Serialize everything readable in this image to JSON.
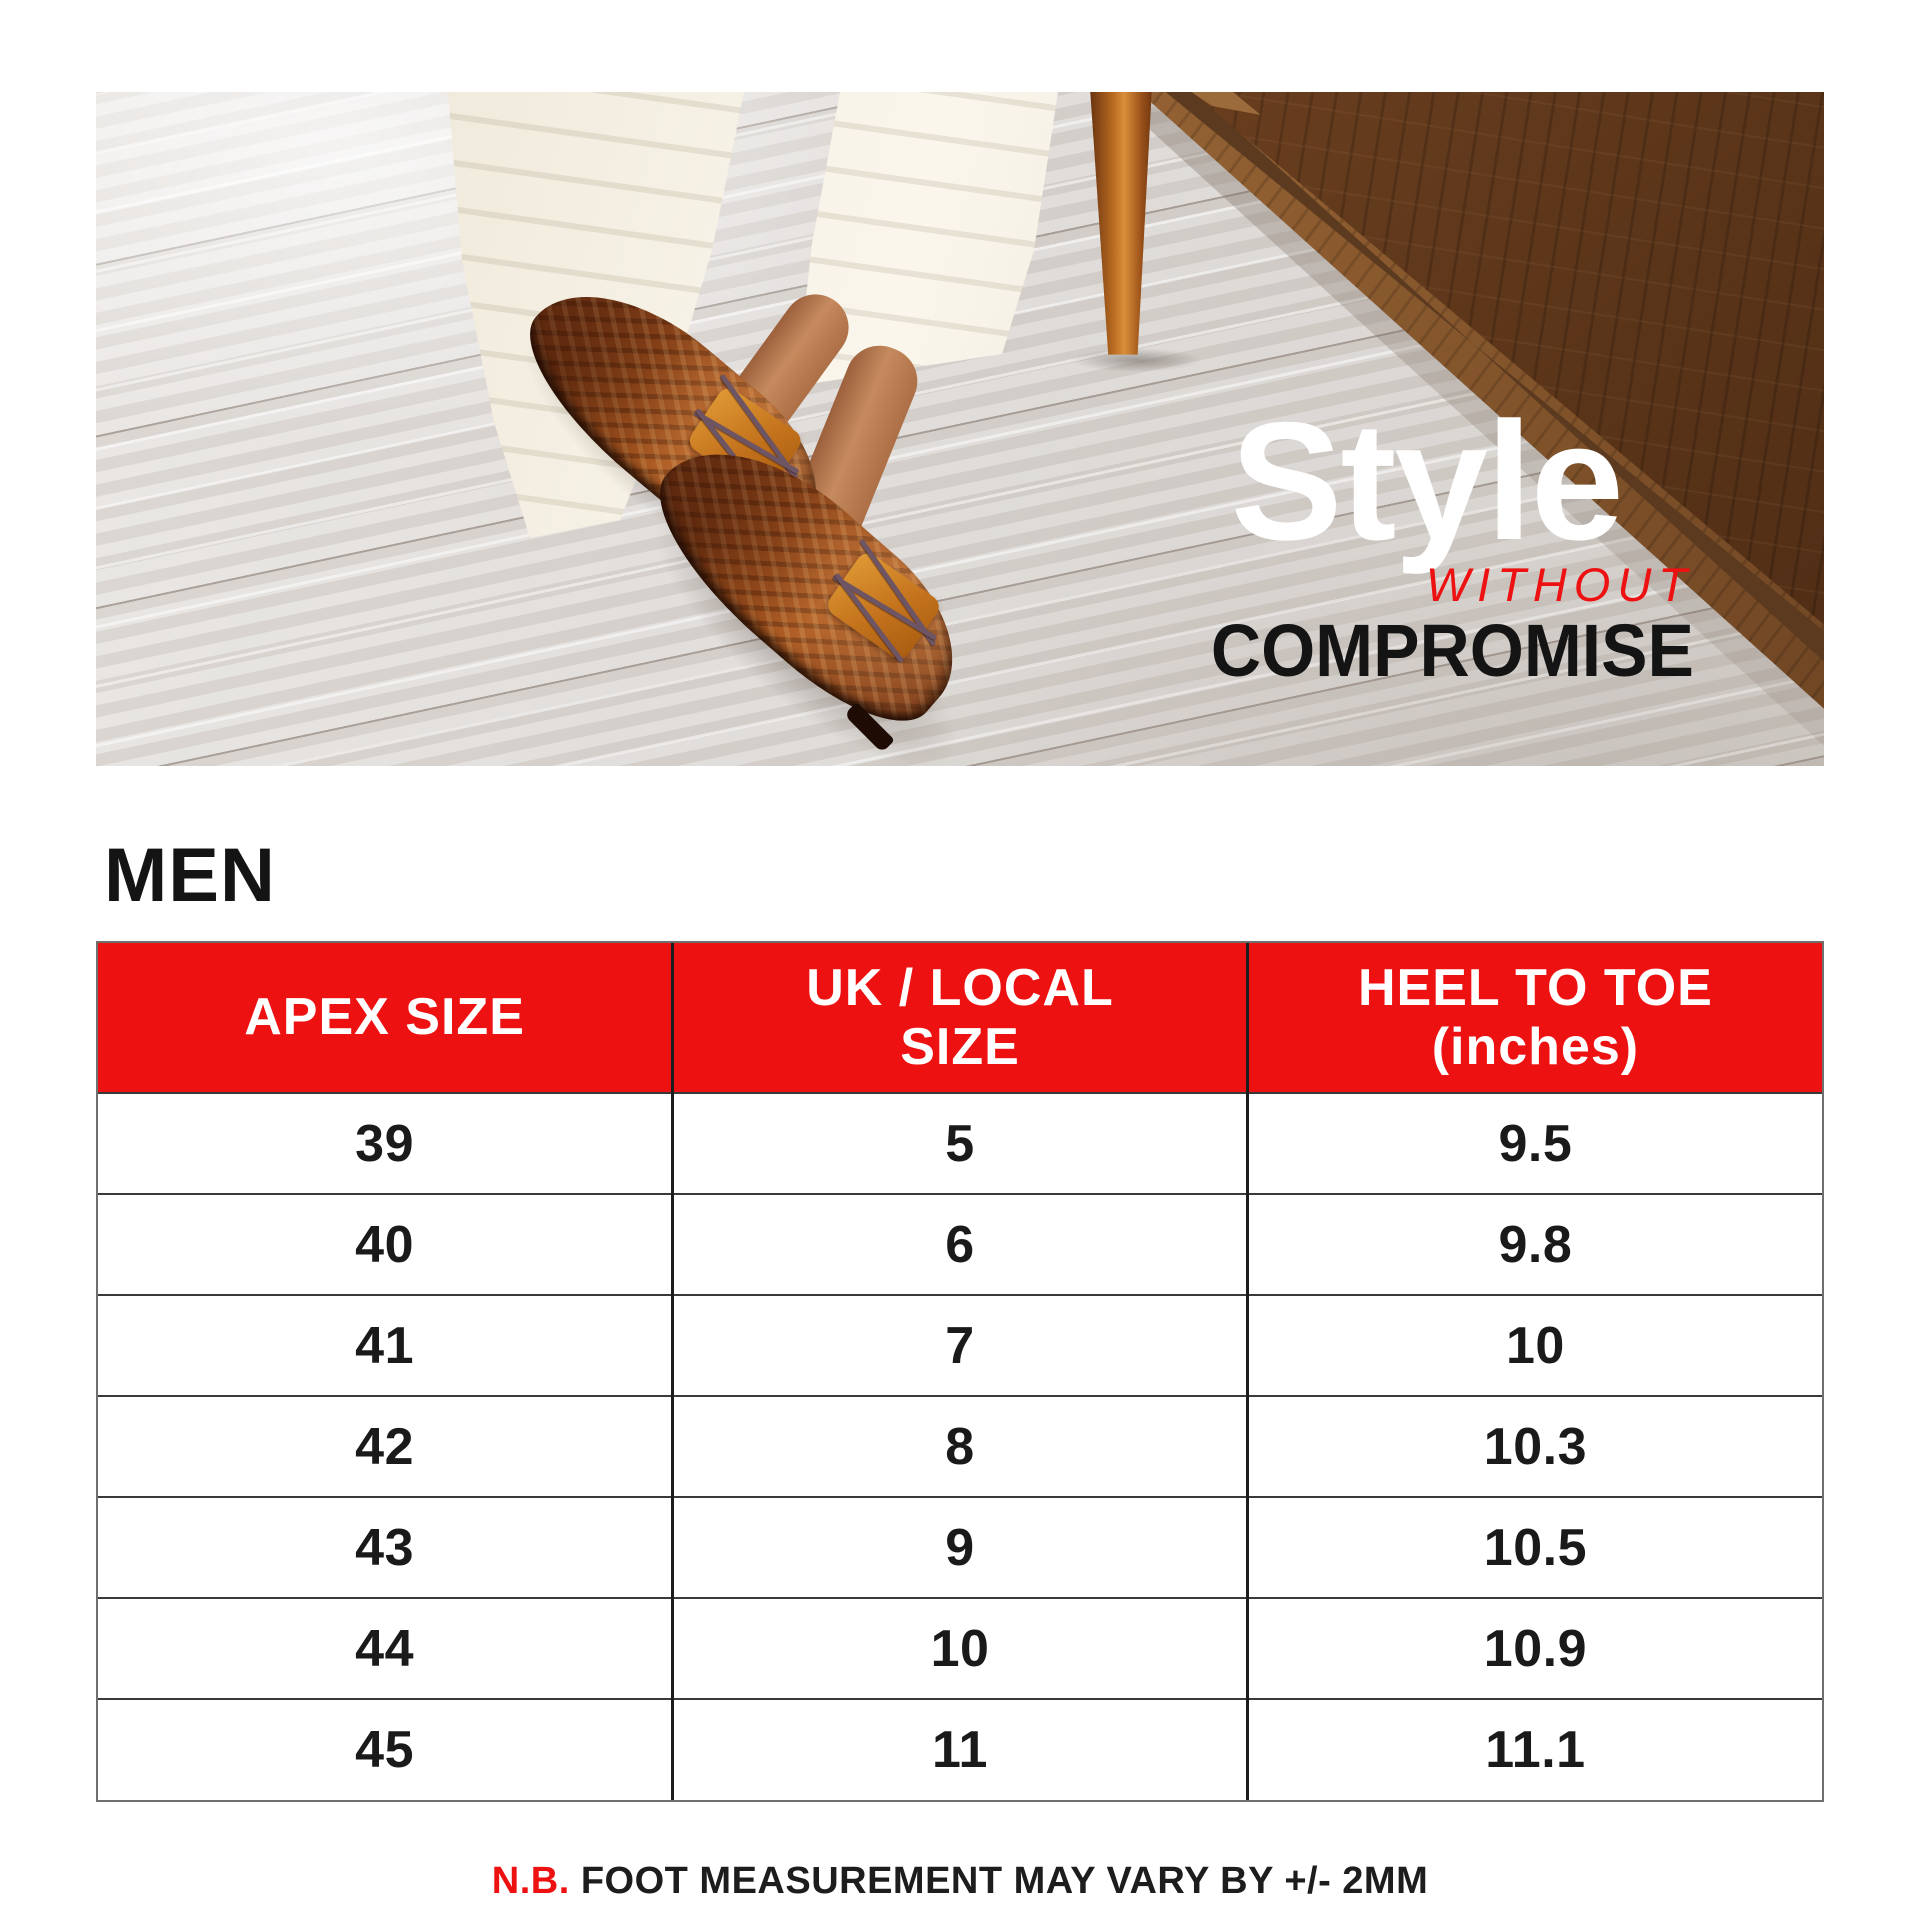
{
  "hero": {
    "line1": "Style",
    "line2": "WITHOUT",
    "line3": "COMPROMISE"
  },
  "section": {
    "title": "MEN"
  },
  "size_table": {
    "columns": [
      {
        "line1": "APEX SIZE",
        "line2": ""
      },
      {
        "line1": "UK / LOCAL",
        "line2": "SIZE"
      },
      {
        "line1": "HEEL TO TOE",
        "line2": "(inches)"
      }
    ],
    "rows": [
      [
        "39",
        "5",
        "9.5"
      ],
      [
        "40",
        "6",
        "9.8"
      ],
      [
        "41",
        "7",
        "10"
      ],
      [
        "42",
        "8",
        "10.3"
      ],
      [
        "43",
        "9",
        "10.5"
      ],
      [
        "44",
        "10",
        "10.9"
      ],
      [
        "45",
        "11",
        "11.1"
      ]
    ]
  },
  "footnote": {
    "prefix": "N.B.",
    "text": "FOOT MEASUREMENT MAY VARY BY +/- 2MM"
  },
  "colors": {
    "accent_red": "#EE1111",
    "ink": "#141414"
  }
}
